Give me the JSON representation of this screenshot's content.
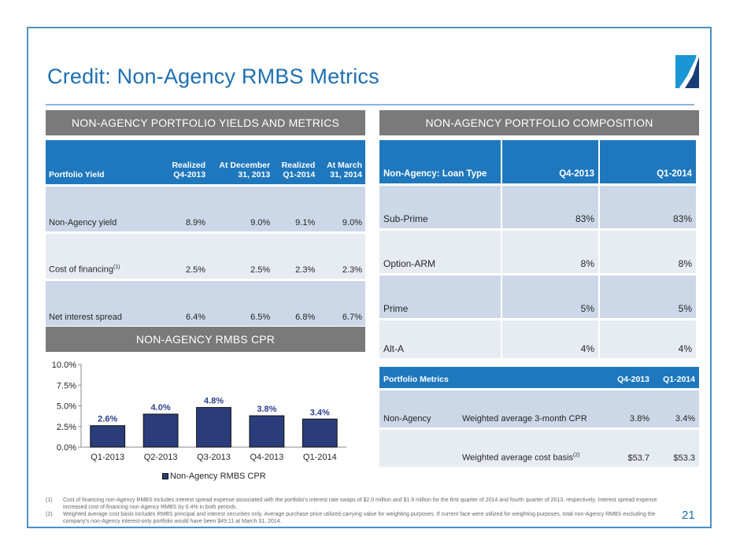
{
  "slide": {
    "title": "Credit: Non-Agency RMBS Metrics",
    "page_number": "21",
    "logo_icon": "company-logo-icon"
  },
  "yields_section": {
    "heading": "NON-AGENCY PORTFOLIO YIELDS AND METRICS",
    "columns": [
      {
        "line1": "",
        "line2": "Portfolio Yield"
      },
      {
        "line1": "Realized",
        "line2": "Q4-2013"
      },
      {
        "line1": "At December",
        "line2": "31, 2013"
      },
      {
        "line1": "Realized",
        "line2": "Q1-2014"
      },
      {
        "line1": "At March",
        "line2": "31, 2014"
      }
    ],
    "rows": [
      {
        "label": "Non-Agency yield",
        "sup": "",
        "values": [
          "8.9%",
          "9.0%",
          "9.1%",
          "9.0%"
        ]
      },
      {
        "label": "Cost of financing",
        "sup": "(1)",
        "values": [
          "2.5%",
          "2.5%",
          "2.3%",
          "2.3%"
        ]
      },
      {
        "label": "Net interest spread",
        "sup": "",
        "values": [
          "6.4%",
          "6.5%",
          "6.8%",
          "6.7%"
        ]
      }
    ]
  },
  "composition_section": {
    "heading": "NON-AGENCY PORTFOLIO COMPOSITION",
    "columns": [
      "Non-Agency: Loan Type",
      "Q4-2013",
      "Q1-2014"
    ],
    "rows": [
      {
        "label": "Sub-Prime",
        "values": [
          "83%",
          "83%"
        ]
      },
      {
        "label": "Option-ARM",
        "values": [
          "8%",
          "8%"
        ]
      },
      {
        "label": "Prime",
        "values": [
          "5%",
          "5%"
        ]
      },
      {
        "label": "Alt-A",
        "values": [
          "4%",
          "4%"
        ]
      }
    ]
  },
  "metrics_section": {
    "columns": [
      "Portfolio Metrics",
      "",
      "Q4-2013",
      "Q1-2014"
    ],
    "rows": [
      {
        "category": "Non-Agency",
        "label": "Weighted average 3-month CPR",
        "sup": "",
        "values": [
          "3.8%",
          "3.4%"
        ]
      },
      {
        "category": "",
        "label": "Weighted average cost basis",
        "sup": "(2)",
        "values": [
          "$53.7",
          "$53.3"
        ]
      }
    ]
  },
  "cpr_section": {
    "heading": "NON-AGENCY RMBS CPR"
  },
  "chart_data": {
    "type": "bar",
    "title": "NON-AGENCY RMBS CPR",
    "categories": [
      "Q1-2013",
      "Q2-2013",
      "Q3-2013",
      "Q4-2013",
      "Q1-2014"
    ],
    "series": [
      {
        "name": "Non-Agency RMBS CPR",
        "values": [
          2.6,
          4.0,
          4.8,
          3.8,
          3.4
        ],
        "labels": [
          "2.6%",
          "4.0%",
          "4.8%",
          "3.8%",
          "3.4%"
        ],
        "color": "#2a3d7a"
      }
    ],
    "xlabel": "",
    "ylabel": "",
    "ylim": [
      0,
      10
    ],
    "yticks": [
      0,
      2.5,
      5.0,
      7.5,
      10.0
    ],
    "ytick_labels": [
      "0.0%",
      "2.5%",
      "5.0%",
      "7.5%",
      "10.0%"
    ],
    "grid": false,
    "legend": "bottom-center",
    "label_color": "#2e3f8c"
  },
  "footnotes": [
    {
      "num": "(1)",
      "text": "Cost of financing non-Agency RMBS includes interest spread expense associated with the portfolio's interest rate swaps of $2.0 million and $1.9 million for the first quarter of 2014 and fourth quarter of 2013, respectively.  Interest spread expense increased cost of financing non-Agency RMBS by 0.4% in both periods."
    },
    {
      "num": "(2)",
      "text": "Weighted average cost basis includes RMBS principal and interest securities only. Average purchase price utilized carrying value for weighting purposes. If current face were utilized for weighting purposes, total non-Agency RMBS excluding the company's non-Agency interest-only portfolio would have been $49.11 at March 31, 2014."
    }
  ],
  "colors": {
    "title": "#1e6fb0",
    "frame": "#4a90c8",
    "section_bar": "#7a7a7a",
    "table_header": "#1f78bd",
    "row_dark": "#ccd8e8",
    "row_light": "#e7ecf3",
    "bar": "#2a3d7a"
  }
}
